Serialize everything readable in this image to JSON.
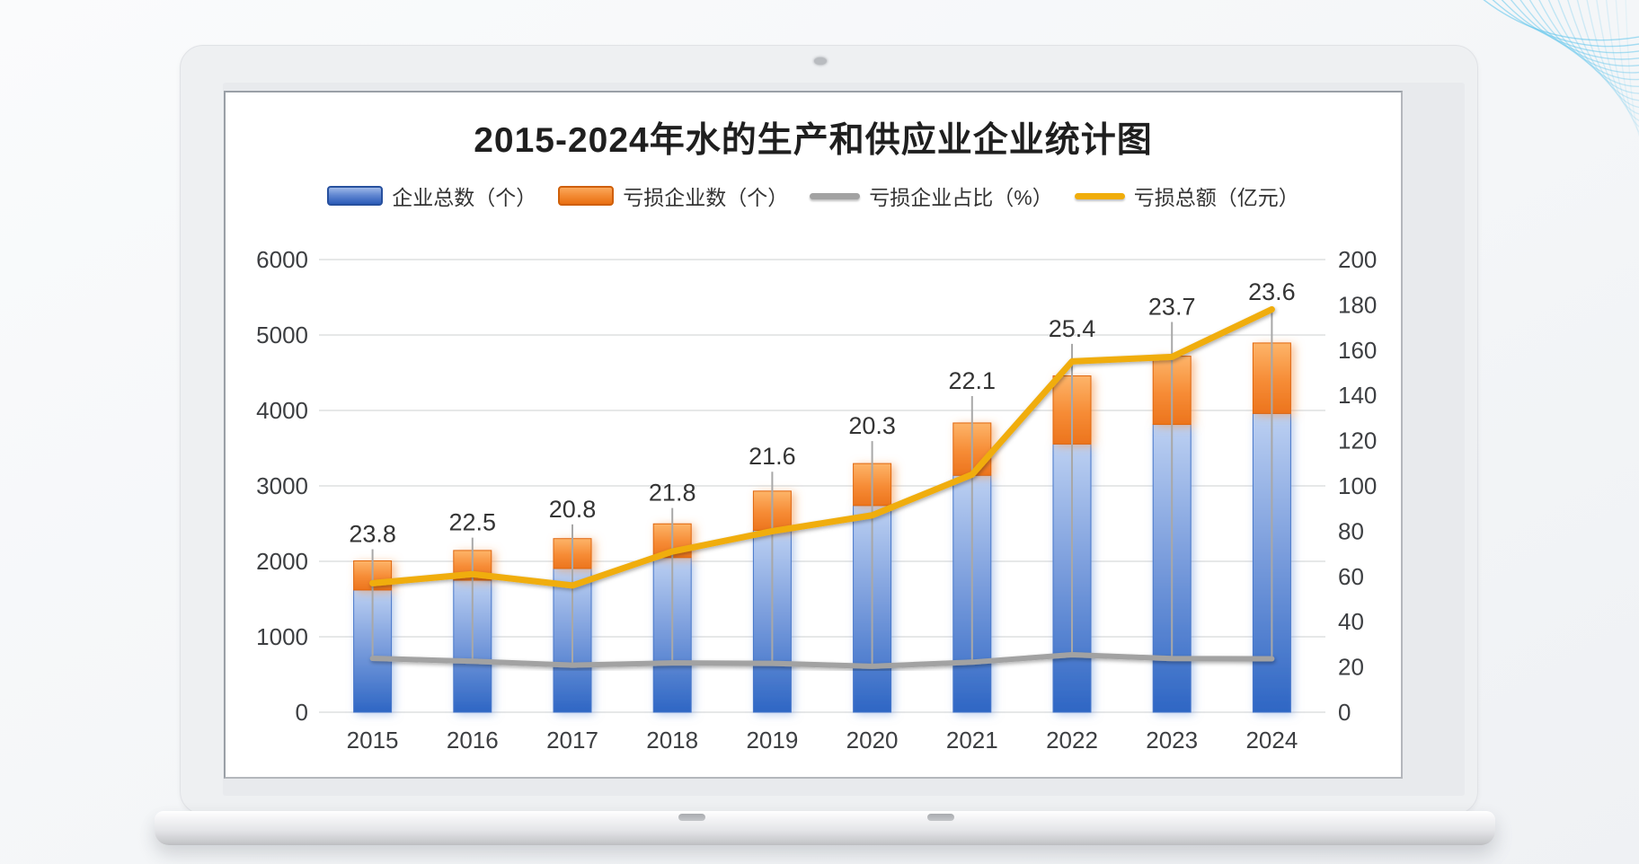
{
  "chart": {
    "title": "2015-2024年水的生产和供应业企业统计图",
    "legend": [
      {
        "label": "企业总数（个）",
        "swatch": "bar-blue-swatch"
      },
      {
        "label": "亏损企业数（个）",
        "swatch": "bar-orange-swatch"
      },
      {
        "label": "亏损企业占比（%）",
        "swatch": "line-gray-swatch"
      },
      {
        "label": "亏损总额（亿元）",
        "swatch": "line-yellow-swatch"
      }
    ]
  },
  "chart_data": {
    "type": "combo (stacked bar + line)",
    "categories": [
      "2015",
      "2016",
      "2017",
      "2018",
      "2019",
      "2020",
      "2021",
      "2022",
      "2023",
      "2024"
    ],
    "series": [
      {
        "name": "企业总数（个）",
        "type": "bar",
        "stack": "s1",
        "axis": "left",
        "color": "#2e66c4",
        "values": [
          1620,
          1750,
          1905,
          2050,
          2410,
          2740,
          3140,
          3555,
          3815,
          3960
        ]
      },
      {
        "name": "亏损企业数（个）",
        "type": "bar",
        "stack": "s1",
        "axis": "left",
        "color": "#ec741d",
        "values": [
          386,
          394,
          396,
          447,
          521,
          556,
          694,
          903,
          904,
          934
        ]
      },
      {
        "name": "亏损企业占比（%）",
        "type": "line",
        "axis": "right",
        "color": "#a2a2a2",
        "values": [
          23.8,
          22.5,
          20.8,
          21.8,
          21.6,
          20.3,
          22.1,
          25.4,
          23.7,
          23.6
        ],
        "labels": [
          "23.8",
          "22.5",
          "20.8",
          "21.8",
          "21.6",
          "20.3",
          "22.1",
          "25.4",
          "23.7",
          "23.6"
        ]
      },
      {
        "name": "亏损总额（亿元）",
        "type": "line",
        "axis": "right",
        "color": "#f0ad0b",
        "values": [
          57,
          61,
          56,
          71,
          80,
          87,
          105,
          155,
          157,
          178
        ]
      }
    ],
    "left_axis": {
      "min": 0,
      "max": 6000,
      "step": 1000,
      "ticks": [
        "6000",
        "5000",
        "4000",
        "3000",
        "2000",
        "1000",
        "0"
      ]
    },
    "right_axis": {
      "min": 0,
      "max": 200,
      "step": 20,
      "ticks": [
        "200",
        "180",
        "160",
        "140",
        "120",
        "100",
        "80",
        "60",
        "40",
        "20",
        "0"
      ]
    },
    "grid": "horizontal-only",
    "legend_position": "top-center",
    "title": "2015-2024年水的生产和供应业企业统计图",
    "colors": {
      "grid": "#d7d9db",
      "tick_text": "#3d3f42",
      "data_label": "#343434",
      "accent_corner": "#5ac3eb"
    }
  }
}
